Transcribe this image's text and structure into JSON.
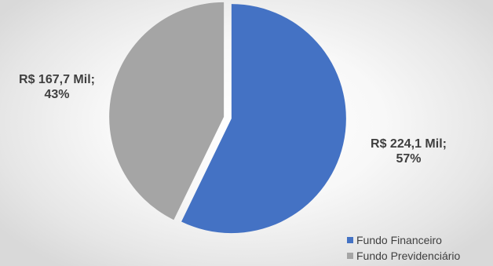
{
  "chart_data": {
    "type": "pie",
    "title": "",
    "slices": [
      {
        "name": "Fundo Financeiro",
        "value": 224.1,
        "value_label": "R$ 224,1 Mil;",
        "percent_label": "57%",
        "color": "#4472c4"
      },
      {
        "name": "Fundo Previdenciário",
        "value": 167.7,
        "value_label": "R$ 167,7 Mil;",
        "percent_label": "43%",
        "color": "#a5a5a5"
      }
    ],
    "legend_position": "bottom-right",
    "exploded": true
  }
}
